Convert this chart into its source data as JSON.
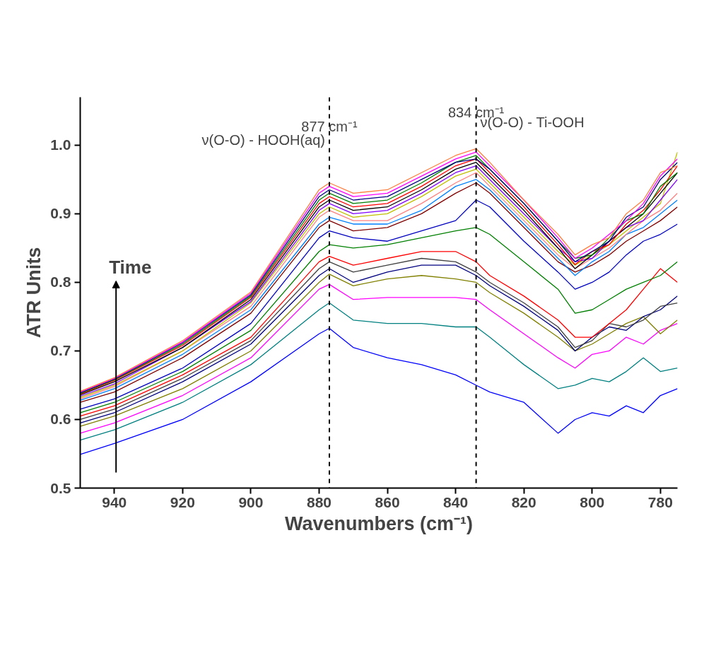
{
  "chart_data": {
    "type": "line",
    "xlabel": "Wavenumbers (cm⁻¹)",
    "ylabel": "ATR Units",
    "xlim": [
      950,
      775
    ],
    "ylim": [
      0.5,
      1.07
    ],
    "xticks": [
      940,
      920,
      900,
      880,
      860,
      840,
      820,
      800,
      780
    ],
    "yticks": [
      0.5,
      0.6,
      0.7,
      0.8,
      0.9,
      {
        "value": 1.0,
        "label": "1.0"
      }
    ],
    "x": [
      950,
      940,
      920,
      900,
      880,
      877,
      870,
      860,
      850,
      840,
      834,
      830,
      820,
      810,
      805,
      800,
      795,
      790,
      785,
      780,
      775
    ],
    "grid": false,
    "marker": "none",
    "line_style": "solid",
    "ref_lines": [
      {
        "axis": "x",
        "value": 877,
        "label": "877 cm⁻¹",
        "line_style": "dashed",
        "color": "#000000"
      },
      {
        "axis": "x",
        "value": 834,
        "label": "834 cm⁻¹",
        "line_style": "dashed",
        "color": "#000000"
      }
    ],
    "annotations": [
      {
        "text": "ν(O-O) - HOOH(aq)",
        "x": 877,
        "y": 1.0
      },
      {
        "text": "ν(O-O) - Ti-OOH",
        "x": 834,
        "y": 1.0
      },
      "Time"
    ],
    "series": [
      {
        "color": "#0000ff",
        "values": [
          0.549,
          0.565,
          0.6,
          0.655,
          0.725,
          0.733,
          0.705,
          0.69,
          0.68,
          0.665,
          0.65,
          0.64,
          0.625,
          0.58,
          0.6,
          0.61,
          0.605,
          0.62,
          0.61,
          0.635,
          0.645
        ]
      },
      {
        "color": "#008080",
        "values": [
          0.57,
          0.585,
          0.625,
          0.68,
          0.76,
          0.77,
          0.745,
          0.74,
          0.74,
          0.735,
          0.735,
          0.72,
          0.68,
          0.645,
          0.65,
          0.66,
          0.655,
          0.67,
          0.69,
          0.67,
          0.675
        ]
      },
      {
        "color": "#ff00ff",
        "values": [
          0.58,
          0.595,
          0.635,
          0.69,
          0.79,
          0.797,
          0.775,
          0.778,
          0.778,
          0.778,
          0.775,
          0.76,
          0.725,
          0.69,
          0.675,
          0.695,
          0.7,
          0.72,
          0.71,
          0.73,
          0.74
        ]
      },
      {
        "color": "#808000",
        "values": [
          0.59,
          0.605,
          0.645,
          0.7,
          0.8,
          0.812,
          0.795,
          0.805,
          0.81,
          0.805,
          0.8,
          0.785,
          0.755,
          0.72,
          0.7,
          0.71,
          0.725,
          0.74,
          0.75,
          0.725,
          0.745
        ]
      },
      {
        "color": "#000080",
        "values": [
          0.595,
          0.61,
          0.655,
          0.71,
          0.81,
          0.82,
          0.8,
          0.815,
          0.825,
          0.825,
          0.81,
          0.795,
          0.765,
          0.73,
          0.7,
          0.72,
          0.735,
          0.73,
          0.75,
          0.76,
          0.78
        ]
      },
      {
        "color": "#404040",
        "values": [
          0.6,
          0.615,
          0.66,
          0.715,
          0.82,
          0.83,
          0.815,
          0.825,
          0.835,
          0.83,
          0.815,
          0.8,
          0.77,
          0.735,
          0.705,
          0.715,
          0.74,
          0.735,
          0.745,
          0.765,
          0.77
        ]
      },
      {
        "color": "#ff0000",
        "values": [
          0.605,
          0.62,
          0.665,
          0.72,
          0.83,
          0.838,
          0.825,
          0.835,
          0.845,
          0.845,
          0.83,
          0.81,
          0.78,
          0.745,
          0.72,
          0.72,
          0.74,
          0.76,
          0.79,
          0.82,
          0.8
        ]
      },
      {
        "color": "#008000",
        "values": [
          0.61,
          0.625,
          0.67,
          0.73,
          0.845,
          0.855,
          0.85,
          0.855,
          0.865,
          0.875,
          0.88,
          0.87,
          0.83,
          0.79,
          0.755,
          0.76,
          0.775,
          0.79,
          0.8,
          0.81,
          0.83
        ]
      },
      {
        "color": "#0000c0",
        "values": [
          0.615,
          0.63,
          0.675,
          0.74,
          0.865,
          0.875,
          0.865,
          0.86,
          0.875,
          0.89,
          0.92,
          0.91,
          0.86,
          0.815,
          0.79,
          0.8,
          0.815,
          0.84,
          0.86,
          0.87,
          0.885
        ]
      },
      {
        "color": "#800000",
        "values": [
          0.625,
          0.64,
          0.69,
          0.755,
          0.88,
          0.89,
          0.875,
          0.88,
          0.9,
          0.93,
          0.945,
          0.93,
          0.88,
          0.83,
          0.815,
          0.825,
          0.84,
          0.86,
          0.875,
          0.89,
          0.91
        ]
      },
      {
        "color": "#0080ff",
        "values": [
          0.628,
          0.645,
          0.695,
          0.76,
          0.885,
          0.895,
          0.885,
          0.885,
          0.905,
          0.94,
          0.95,
          0.935,
          0.885,
          0.835,
          0.81,
          0.83,
          0.845,
          0.87,
          0.88,
          0.9,
          0.92
        ]
      },
      {
        "color": "#ff8080",
        "values": [
          0.63,
          0.648,
          0.7,
          0.765,
          0.895,
          0.905,
          0.89,
          0.89,
          0.915,
          0.945,
          0.96,
          0.94,
          0.89,
          0.84,
          0.82,
          0.835,
          0.85,
          0.87,
          0.89,
          0.905,
          0.93
        ]
      },
      {
        "color": "#c0c000",
        "values": [
          0.632,
          0.65,
          0.7,
          0.77,
          0.9,
          0.91,
          0.895,
          0.9,
          0.925,
          0.955,
          0.965,
          0.945,
          0.895,
          0.845,
          0.825,
          0.84,
          0.855,
          0.875,
          0.895,
          0.915,
          0.99
        ]
      },
      {
        "color": "#8000ff",
        "values": [
          0.634,
          0.652,
          0.705,
          0.772,
          0.905,
          0.915,
          0.9,
          0.905,
          0.93,
          0.96,
          0.97,
          0.95,
          0.9,
          0.85,
          0.83,
          0.835,
          0.86,
          0.88,
          0.89,
          0.92,
          0.95
        ]
      },
      {
        "color": "#000000",
        "values": [
          0.636,
          0.655,
          0.705,
          0.775,
          0.91,
          0.92,
          0.905,
          0.91,
          0.935,
          0.965,
          0.975,
          0.955,
          0.905,
          0.85,
          0.82,
          0.84,
          0.86,
          0.88,
          0.9,
          0.93,
          0.96
        ]
      },
      {
        "color": "#ff0000",
        "values": [
          0.637,
          0.657,
          0.708,
          0.778,
          0.915,
          0.925,
          0.91,
          0.915,
          0.94,
          0.97,
          0.98,
          0.96,
          0.91,
          0.855,
          0.826,
          0.845,
          0.855,
          0.885,
          0.905,
          0.935,
          0.97
        ]
      },
      {
        "color": "#008000",
        "values": [
          0.638,
          0.658,
          0.71,
          0.78,
          0.92,
          0.93,
          0.915,
          0.92,
          0.945,
          0.975,
          0.985,
          0.965,
          0.915,
          0.86,
          0.835,
          0.84,
          0.865,
          0.89,
          0.9,
          0.94,
          0.96
        ]
      },
      {
        "color": "#000080",
        "values": [
          0.639,
          0.659,
          0.712,
          0.782,
          0.925,
          0.935,
          0.92,
          0.925,
          0.95,
          0.975,
          0.98,
          0.965,
          0.915,
          0.86,
          0.83,
          0.845,
          0.86,
          0.895,
          0.91,
          0.95,
          0.975
        ]
      },
      {
        "color": "#ff00ff",
        "values": [
          0.64,
          0.66,
          0.713,
          0.784,
          0.93,
          0.94,
          0.925,
          0.93,
          0.955,
          0.98,
          0.99,
          0.97,
          0.92,
          0.865,
          0.835,
          0.85,
          0.87,
          0.89,
          0.915,
          0.955,
          0.98
        ]
      },
      {
        "color": "#ff8040",
        "values": [
          0.641,
          0.661,
          0.715,
          0.786,
          0.935,
          0.945,
          0.93,
          0.935,
          0.96,
          0.985,
          0.995,
          0.975,
          0.92,
          0.87,
          0.84,
          0.855,
          0.865,
          0.9,
          0.92,
          0.96,
          0.97
        ]
      }
    ]
  }
}
